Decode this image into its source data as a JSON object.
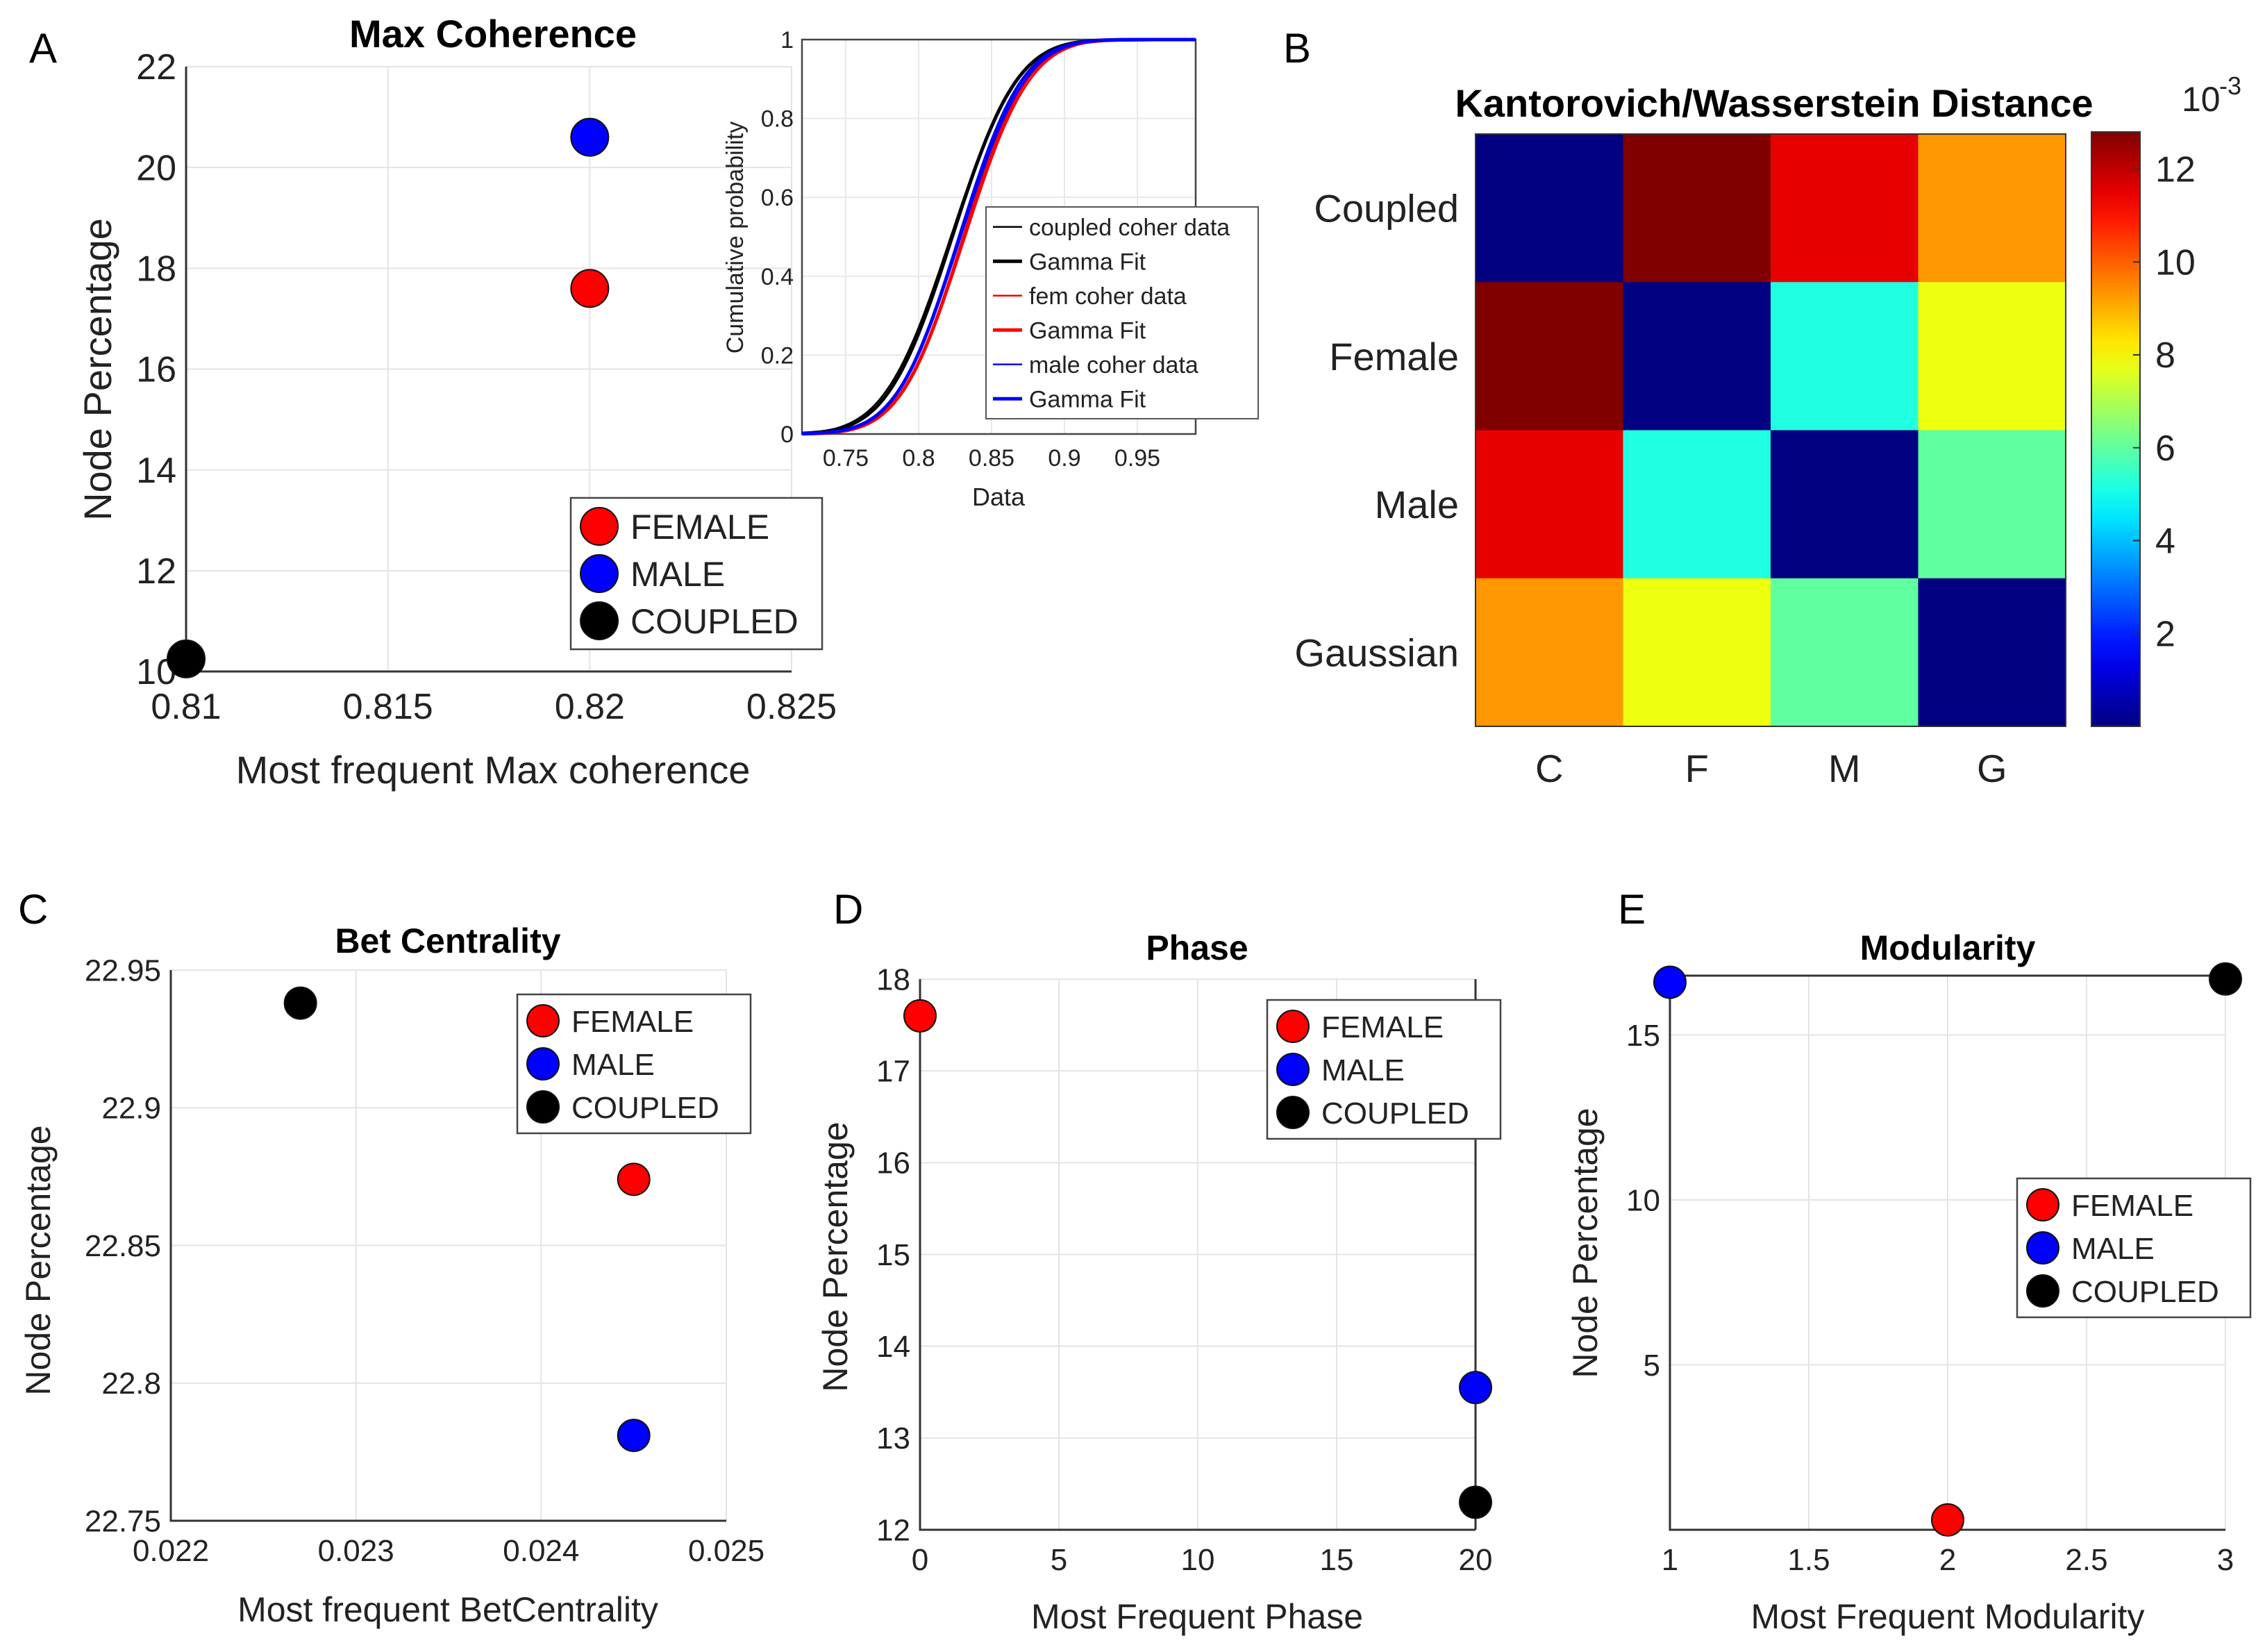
{
  "figure": {
    "panels": [
      "A",
      "B",
      "C",
      "D",
      "E"
    ],
    "marker_colors": {
      "FEMALE": "#ff0000",
      "MALE": "#0000ff",
      "COUPLED": "#000000"
    }
  },
  "chart_data": [
    {
      "id": "A",
      "type": "scatter",
      "title": "Max Coherence",
      "xlabel": "Most frequent Max coherence",
      "ylabel": "Node Percentage",
      "xlim": [
        0.81,
        0.825
      ],
      "ylim": [
        10,
        22
      ],
      "xticks": [
        "0.81",
        "0.815",
        "0.82",
        "0.825"
      ],
      "yticks": [
        "10",
        "12",
        "14",
        "16",
        "18",
        "20",
        "22"
      ],
      "legend": "bottom-right",
      "series": [
        {
          "name": "FEMALE",
          "color": "#ff0000",
          "points": [
            [
              0.82,
              17.6
            ]
          ]
        },
        {
          "name": "MALE",
          "color": "#0000ff",
          "points": [
            [
              0.82,
              20.6
            ]
          ]
        },
        {
          "name": "COUPLED",
          "color": "#000000",
          "points": [
            [
              0.81,
              10.25
            ]
          ]
        }
      ]
    },
    {
      "id": "A-inset",
      "type": "line",
      "title": "",
      "xlabel": "Data",
      "ylabel": "Cumulative probability",
      "xlim": [
        0.72,
        0.99
      ],
      "ylim": [
        0,
        1
      ],
      "xticks": [
        "0.75",
        "0.8",
        "0.85",
        "0.9",
        "0.95"
      ],
      "yticks": [
        "0",
        "0.2",
        "0.4",
        "0.6",
        "0.8",
        "1"
      ],
      "legend": "bottom-right",
      "series": [
        {
          "name": "coupled coher data",
          "color": "#000000",
          "mean": 0.822,
          "sd": 0.036
        },
        {
          "name": "Gamma Fit",
          "color": "#000000",
          "mean": 0.823,
          "sd": 0.035
        },
        {
          "name": "fem coher data",
          "color": "#ff0000",
          "mean": 0.832,
          "sd": 0.035
        },
        {
          "name": "Gamma Fit",
          "color": "#ff0000",
          "mean": 0.831,
          "sd": 0.034
        },
        {
          "name": "male coher data",
          "color": "#0000ff",
          "mean": 0.829,
          "sd": 0.035
        },
        {
          "name": "Gamma Fit",
          "color": "#0000ff",
          "mean": 0.828,
          "sd": 0.034
        }
      ]
    },
    {
      "id": "B",
      "type": "heatmap",
      "title": "Kantorovich/Wasserstein Distance",
      "row_labels": [
        "Coupled",
        "Female",
        "Male",
        "Gaussian"
      ],
      "col_labels": [
        "C",
        "F",
        "M",
        "G"
      ],
      "values": [
        [
          0.0,
          12.8,
          11.5,
          9.3
        ],
        [
          12.8,
          0.0,
          5.2,
          7.8
        ],
        [
          11.5,
          5.2,
          0.0,
          6.0
        ],
        [
          9.3,
          7.8,
          6.0,
          0.0
        ]
      ],
      "colorbar": {
        "range": [
          0,
          12.8
        ],
        "ticks": [
          "2",
          "4",
          "6",
          "8",
          "10",
          "12"
        ],
        "tick_values": [
          2,
          4,
          6,
          8,
          10,
          12
        ],
        "exponent": "10",
        "exponent_power": "-3"
      }
    },
    {
      "id": "C",
      "type": "scatter",
      "title": "Bet Centrality",
      "xlabel": "Most frequent BetCentrality",
      "ylabel": "Node Percentage",
      "xlim": [
        0.022,
        0.025
      ],
      "ylim": [
        22.75,
        22.95
      ],
      "xticks": [
        "0.022",
        "0.023",
        "0.024",
        "0.025"
      ],
      "yticks": [
        "22.75",
        "22.8",
        "22.85",
        "22.9",
        "22.95"
      ],
      "legend": "top-right",
      "series": [
        {
          "name": "FEMALE",
          "color": "#ff0000",
          "points": [
            [
              0.0245,
              22.874
            ]
          ]
        },
        {
          "name": "MALE",
          "color": "#0000ff",
          "points": [
            [
              0.0245,
              22.781
            ]
          ]
        },
        {
          "name": "COUPLED",
          "color": "#000000",
          "points": [
            [
              0.0227,
              22.938
            ]
          ]
        }
      ]
    },
    {
      "id": "D",
      "type": "scatter",
      "title": "Phase",
      "xlabel": "Most Frequent Phase",
      "ylabel": "Node Percentage",
      "xlim": [
        0,
        20
      ],
      "ylim": [
        12,
        18
      ],
      "xticks": [
        "0",
        "5",
        "10",
        "15",
        "20"
      ],
      "yticks": [
        "12",
        "13",
        "14",
        "15",
        "16",
        "17",
        "18"
      ],
      "legend": "top-right",
      "series": [
        {
          "name": "FEMALE",
          "color": "#ff0000",
          "points": [
            [
              0,
              17.6
            ]
          ]
        },
        {
          "name": "MALE",
          "color": "#0000ff",
          "points": [
            [
              20,
              13.55
            ]
          ]
        },
        {
          "name": "COUPLED",
          "color": "#000000",
          "points": [
            [
              20,
              12.3
            ]
          ]
        }
      ]
    },
    {
      "id": "E",
      "type": "scatter",
      "title": "Modularity",
      "xlabel": "Most Frequent Modularity",
      "ylabel": "Node Percentage",
      "xlim": [
        1,
        3
      ],
      "ylim": [
        0,
        16.8
      ],
      "xticks": [
        "1",
        "1.5",
        "2",
        "2.5",
        "3"
      ],
      "yticks": [
        "5",
        "10",
        "15"
      ],
      "tick_values_y": [
        5,
        10,
        15
      ],
      "legend": "center-right",
      "series": [
        {
          "name": "FEMALE",
          "color": "#ff0000",
          "points": [
            [
              2,
              0.3
            ]
          ]
        },
        {
          "name": "MALE",
          "color": "#0000ff",
          "points": [
            [
              1,
              16.6
            ]
          ]
        },
        {
          "name": "COUPLED",
          "color": "#000000",
          "points": [
            [
              3,
              16.7
            ]
          ]
        }
      ]
    }
  ]
}
